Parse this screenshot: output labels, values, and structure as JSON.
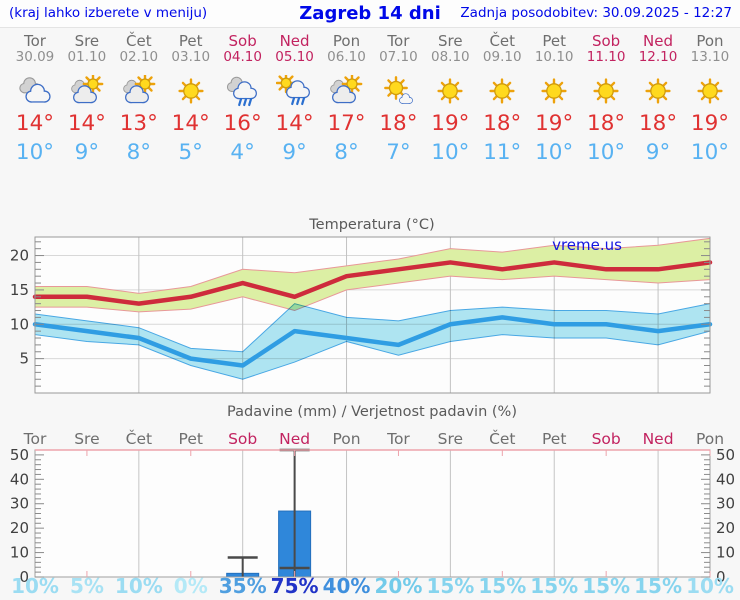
{
  "header": {
    "left_note": "(kraj lahko izberete v meniju)",
    "title": "Zagreb 14 dni",
    "updated": "Zadnja posodobitev: 30.09.2025 - 12:27"
  },
  "colors": {
    "header_blue": "#0008e8",
    "weekend": "#c22360",
    "tmax_red": "#e03232",
    "tmin_blue": "#58b2f2"
  },
  "watermark": "vreme.us",
  "days": [
    {
      "name": "Tor",
      "date": "30.09",
      "weekend": false,
      "icon": "cloudy",
      "tmax": "14°",
      "tmin": "10°",
      "prob": "10%",
      "prob_color": "#9bdcf2"
    },
    {
      "name": "Sre",
      "date": "01.10",
      "weekend": false,
      "icon": "partly",
      "tmax": "14°",
      "tmin": "9°",
      "prob": "5%",
      "prob_color": "#a8e2f4"
    },
    {
      "name": "Čet",
      "date": "02.10",
      "weekend": false,
      "icon": "partly",
      "tmax": "13°",
      "tmin": "8°",
      "prob": "10%",
      "prob_color": "#9bdcf2"
    },
    {
      "name": "Pet",
      "date": "03.10",
      "weekend": false,
      "icon": "sunny",
      "tmax": "14°",
      "tmin": "5°",
      "prob": "0%",
      "prob_color": "#b4e9f7"
    },
    {
      "name": "Sob",
      "date": "04.10",
      "weekend": true,
      "icon": "rain",
      "tmax": "16°",
      "tmin": "4°",
      "prob": "35%",
      "prob_color": "#4f9fe0"
    },
    {
      "name": "Ned",
      "date": "05.10",
      "weekend": true,
      "icon": "sun-rain",
      "tmax": "14°",
      "tmin": "9°",
      "prob": "75%",
      "prob_color": "#2133c7"
    },
    {
      "name": "Pon",
      "date": "06.10",
      "weekend": false,
      "icon": "partly",
      "tmax": "17°",
      "tmin": "8°",
      "prob": "40%",
      "prob_color": "#3f8fdd"
    },
    {
      "name": "Tor",
      "date": "07.10",
      "weekend": false,
      "icon": "mostly-sunny",
      "tmax": "18°",
      "tmin": "7°",
      "prob": "20%",
      "prob_color": "#72cbea"
    },
    {
      "name": "Sre",
      "date": "08.10",
      "weekend": false,
      "icon": "sunny",
      "tmax": "19°",
      "tmin": "10°",
      "prob": "15%",
      "prob_color": "#86d4ee"
    },
    {
      "name": "Čet",
      "date": "09.10",
      "weekend": false,
      "icon": "sunny",
      "tmax": "18°",
      "tmin": "11°",
      "prob": "15%",
      "prob_color": "#86d4ee"
    },
    {
      "name": "Pet",
      "date": "10.10",
      "weekend": false,
      "icon": "sunny",
      "tmax": "19°",
      "tmin": "10°",
      "prob": "15%",
      "prob_color": "#86d4ee"
    },
    {
      "name": "Sob",
      "date": "11.10",
      "weekend": true,
      "icon": "sunny",
      "tmax": "18°",
      "tmin": "10°",
      "prob": "15%",
      "prob_color": "#86d4ee"
    },
    {
      "name": "Ned",
      "date": "12.10",
      "weekend": true,
      "icon": "sunny",
      "tmax": "18°",
      "tmin": "9°",
      "prob": "15%",
      "prob_color": "#86d4ee"
    },
    {
      "name": "Pon",
      "date": "13.10",
      "weekend": false,
      "icon": "sunny",
      "tmax": "19°",
      "tmin": "10°",
      "prob": "10%",
      "prob_color": "#9bdcf2"
    }
  ],
  "chart_data": [
    {
      "type": "line",
      "title": "Temperatura (°C)",
      "x_count": 14,
      "ylim": [
        0,
        22.7
      ],
      "yticks": [
        5,
        10,
        15,
        20
      ],
      "grid": "vertical-every-2-days",
      "series": [
        {
          "name": "max-temp",
          "color": "#ce2b3c",
          "band_color": "#dcefa4",
          "band_edge": "#e89898",
          "values": [
            14,
            14,
            13,
            14,
            16,
            14,
            17,
            18,
            19,
            18,
            19,
            18,
            18,
            19
          ],
          "band_upper": [
            15.5,
            15.5,
            14.5,
            15.5,
            18,
            17.5,
            18.5,
            19.5,
            21,
            20.5,
            21.5,
            21,
            21.5,
            22.5
          ],
          "band_lower": [
            12.5,
            12.5,
            11.8,
            12.2,
            14,
            12,
            15,
            16,
            17,
            16.5,
            17,
            16.5,
            16,
            16.5
          ]
        },
        {
          "name": "min-temp",
          "color": "#2f9de3",
          "band_color": "#a5e3f2",
          "band_edge": "#2f9de3",
          "values": [
            10,
            9,
            8,
            5,
            4,
            9,
            8,
            7,
            10,
            11,
            10,
            10,
            9,
            10
          ],
          "band_upper": [
            11.5,
            10.5,
            9.5,
            6.5,
            6,
            13,
            11,
            10.5,
            12,
            12.5,
            12,
            12,
            11.5,
            13
          ],
          "band_lower": [
            8.5,
            7.5,
            7,
            4,
            2,
            4.5,
            7.5,
            5.5,
            7.5,
            8.5,
            8,
            8,
            7,
            9
          ]
        }
      ]
    },
    {
      "type": "bar",
      "title": "Padavine (mm) / Verjetnost padavin (%)",
      "bar_color": "#2f87da",
      "bar_edge": "#2470bd",
      "ylim": [
        0,
        52
      ],
      "yticks": [
        0,
        10,
        20,
        30,
        40,
        50
      ],
      "values": [
        0,
        0,
        0,
        0,
        1.5,
        27,
        0,
        0,
        0,
        0,
        0,
        0,
        0,
        0
      ],
      "whisker_low": [
        null,
        null,
        null,
        null,
        null,
        3.7,
        null,
        null,
        null,
        null,
        null,
        null,
        null,
        null
      ],
      "whisker_high": [
        null,
        null,
        null,
        null,
        8,
        52,
        null,
        null,
        null,
        null,
        null,
        null,
        null,
        null
      ],
      "probabilities": [
        "10%",
        "5%",
        "10%",
        "0%",
        "35%",
        "75%",
        "40%",
        "20%",
        "15%",
        "15%",
        "15%",
        "15%",
        "15%",
        "10%"
      ]
    }
  ]
}
